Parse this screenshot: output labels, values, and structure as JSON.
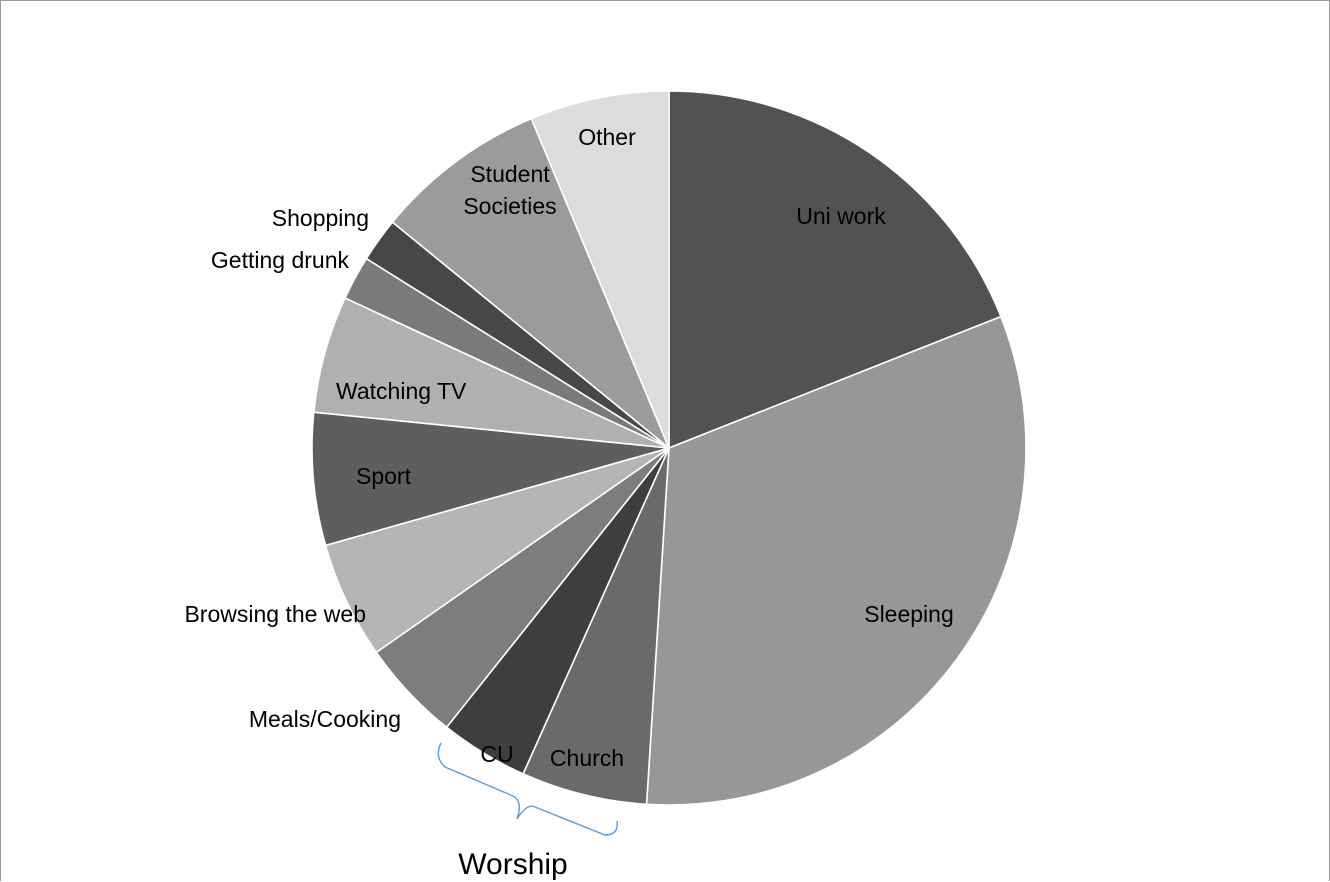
{
  "chart_data": {
    "type": "pie",
    "title": "",
    "slices": [
      {
        "label": "Uni work",
        "label_lines": [
          "Uni work"
        ],
        "value": 19.0,
        "color": "#525252",
        "label_color": "#000000"
      },
      {
        "label": "Sleeping",
        "label_lines": [
          "Sleeping"
        ],
        "value": 32.0,
        "color": "#979797",
        "label_color": "#000000"
      },
      {
        "label": "Church",
        "label_lines": [
          "Church"
        ],
        "value": 5.7,
        "color": "#6a6a6a",
        "label_color": "#000000"
      },
      {
        "label": "CU",
        "label_lines": [
          "CU"
        ],
        "value": 4.0,
        "color": "#3e3e3e",
        "label_color": "#000000"
      },
      {
        "label": "Meals/Cooking",
        "label_lines": [
          "Meals/Cooking"
        ],
        "value": 4.6,
        "color": "#7d7d7d",
        "label_color": "#000000"
      },
      {
        "label": "Browsing the web",
        "label_lines": [
          "Browsing the web"
        ],
        "value": 5.3,
        "color": "#b5b5b5",
        "label_color": "#000000"
      },
      {
        "label": "Sport",
        "label_lines": [
          "Sport"
        ],
        "value": 6.0,
        "color": "#5e5e5e",
        "label_color": "#000000"
      },
      {
        "label": "Watching TV",
        "label_lines": [
          "Watching TV"
        ],
        "value": 5.3,
        "color": "#b0b0b0",
        "label_color": "#000000"
      },
      {
        "label": "Getting drunk",
        "label_lines": [
          "Getting drunk"
        ],
        "value": 2.0,
        "color": "#7a7a7a",
        "label_color": "#000000"
      },
      {
        "label": "Shopping",
        "label_lines": [
          "Shopping"
        ],
        "value": 2.0,
        "color": "#474747",
        "label_color": "#000000"
      },
      {
        "label": "Student Societies",
        "label_lines": [
          "Student",
          "Societies"
        ],
        "value": 7.8,
        "color": "#9b9b9b",
        "label_color": "#000000"
      },
      {
        "label": "Other",
        "label_lines": [
          "Other"
        ],
        "value": 6.3,
        "color": "#dcdcdc",
        "label_color": "#000000"
      }
    ],
    "annotation": {
      "label": "Worship",
      "groups": [
        "Church",
        "CU"
      ],
      "color": "#5b9bd5"
    },
    "legend": "none"
  }
}
